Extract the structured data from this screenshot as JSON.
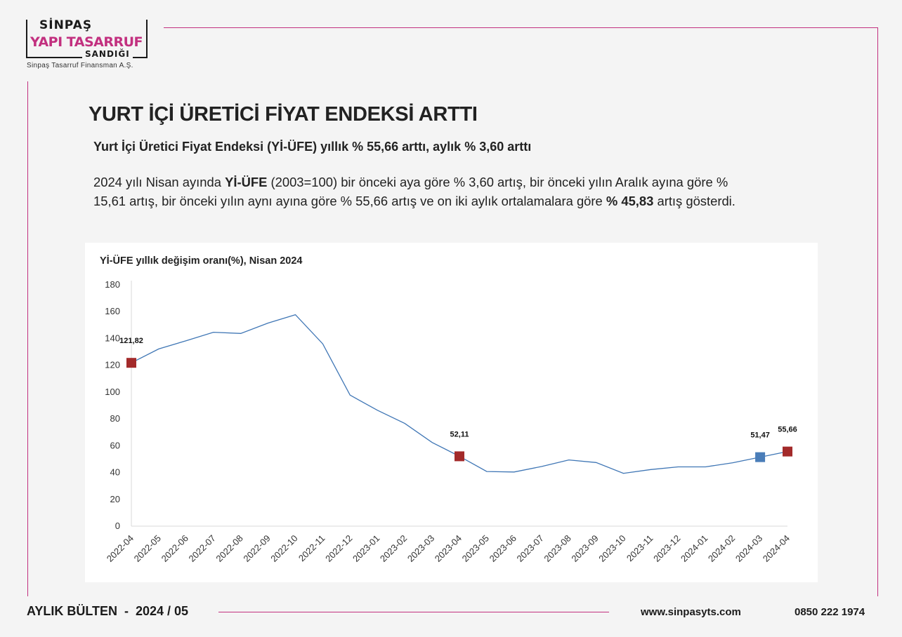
{
  "logo": {
    "brand_top": "SİNPAŞ",
    "brand_main": "YAPI TASARRUF",
    "brand_bottom": "SANDIĞI",
    "company": "Sinpaş Tasarruf Finansman A.Ş."
  },
  "article": {
    "title": "YURT İÇİ ÜRETİCİ FİYAT ENDEKSİ ARTTI",
    "subtitle": "Yurt İçi Üretici Fiyat Endeksi (Yİ-ÜFE) yıllık % 55,66 arttı, aylık % 3,60 arttı",
    "para_1": "2024 yılı Nisan ayında ",
    "para_bold_1": "Yİ-ÜFE",
    "para_2": " (2003=100) bir önceki aya göre % 3,60 artış, bir önceki yılın Aralık ayına göre % 15,61 artış, bir önceki yılın aynı ayına göre % 55,66 artış ve on iki aylık ortalamalara göre ",
    "para_bold_2": "% 45,83",
    "para_3": " artış gösterdi."
  },
  "chart_data": {
    "type": "line",
    "title": "Yİ-ÜFE yıllık değişim oranı(%), Nisan 2024",
    "xlabel": "",
    "ylabel": "",
    "ylim": [
      0,
      180
    ],
    "yticks": [
      0,
      20,
      40,
      60,
      80,
      100,
      120,
      140,
      160,
      180
    ],
    "categories": [
      "2022-04",
      "2022-05",
      "2022-06",
      "2022-07",
      "2022-08",
      "2022-09",
      "2022-10",
      "2022-11",
      "2022-12",
      "2023-01",
      "2023-02",
      "2023-03",
      "2023-04",
      "2023-05",
      "2023-06",
      "2023-07",
      "2023-08",
      "2023-09",
      "2023-10",
      "2023-11",
      "2023-12",
      "2024-01",
      "2024-02",
      "2024-03",
      "2024-04"
    ],
    "series": [
      {
        "name": "Yİ-ÜFE yıllık değişim oranı(%)",
        "values": [
          121.82,
          132.16,
          138.31,
          144.61,
          143.75,
          151.5,
          157.69,
          136.02,
          97.72,
          86.46,
          76.61,
          62.45,
          52.11,
          40.76,
          40.42,
          44.5,
          49.41,
          47.44,
          39.39,
          42.25,
          44.22,
          44.2,
          47.29,
          51.47,
          55.66
        ]
      }
    ],
    "markers": [
      {
        "index": 0,
        "label": "121,82",
        "color": "#a32a2a"
      },
      {
        "index": 12,
        "label": "52,11",
        "color": "#a32a2a"
      },
      {
        "index": 23,
        "label": "51,47",
        "color": "#4a7db8"
      },
      {
        "index": 24,
        "label": "55,66",
        "color": "#a32a2a"
      }
    ],
    "line_color": "#3f76b5",
    "grid": false
  },
  "footer": {
    "bulletin": "AYLIK BÜLTEN  -  2024 / 05",
    "website": "www.sinpasyts.com",
    "phone": "0850 222 1974"
  }
}
